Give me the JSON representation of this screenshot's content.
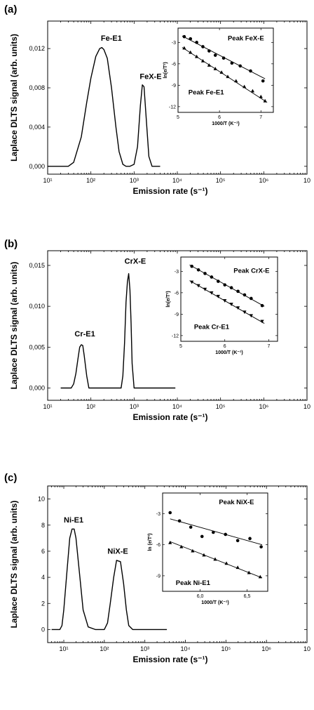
{
  "figure": {
    "panels": [
      "(a)",
      "(b)",
      "(c)"
    ]
  },
  "chart_data": [
    {
      "type": "line",
      "panel_label": "(a)",
      "xlabel": "Emission rate (s⁻¹)",
      "ylabel": "Laplace DLTS signal (arb. units)",
      "xscale": "log",
      "xlim": [
        10,
        10000000
      ],
      "ylim": [
        -0.0008,
        0.0148
      ],
      "x_tick_values": [
        10,
        100,
        1000,
        10000,
        100000,
        1000000,
        10000000
      ],
      "x_tick_labels": [
        "10¹",
        "10²",
        "10³",
        "10⁴",
        "10⁵",
        "10⁶",
        "10"
      ],
      "y_tick_values": [
        0,
        0.004,
        0.008,
        0.012
      ],
      "y_tick_labels": [
        "0,000",
        "0,004",
        "0,008",
        "0,012"
      ],
      "series": [
        {
          "x": [
            10,
            30,
            40,
            60,
            80,
            100,
            130,
            160,
            180,
            200,
            240,
            300,
            380,
            450,
            550,
            650,
            800,
            1000,
            1200,
            1400,
            1550,
            1700,
            1900,
            2200,
            2600,
            3000,
            4000
          ],
          "y": [
            0,
            0,
            0.0004,
            0.003,
            0.0065,
            0.009,
            0.0112,
            0.012,
            0.0121,
            0.0119,
            0.011,
            0.008,
            0.004,
            0.0015,
            0.0002,
            0,
            0,
            0.0002,
            0.002,
            0.0062,
            0.0083,
            0.0081,
            0.005,
            0.001,
            0,
            0,
            0
          ]
        }
      ],
      "peak_labels": [
        {
          "text": "Fe-E1",
          "x": 170,
          "y": 0.0128
        },
        {
          "text": "FeX-E",
          "x": 1350,
          "y": 0.0089
        }
      ],
      "inset": {
        "xlabel": "1000/T (K⁻¹)",
        "ylabel": "ln(e/T²)",
        "xlim": [
          5,
          7.3
        ],
        "ylim": [
          -12.8,
          -1
        ],
        "x_tick_values": [
          5,
          6,
          7
        ],
        "x_tick_labels": [
          "5",
          "6",
          "7"
        ],
        "y_tick_values": [
          -3,
          -6,
          -9,
          -12
        ],
        "y_tick_labels": [
          "-3",
          "-6",
          "-9",
          "-12"
        ],
        "series": [
          {
            "name": "Peak FeX-E",
            "marker": "circle",
            "x": [
              5.15,
              5.3,
              5.45,
              5.6,
              5.75,
              5.9,
              6.1,
              6.3,
              6.5,
              6.75,
              7.05
            ],
            "y": [
              -2.2,
              -2.5,
              -3.0,
              -3.6,
              -4.2,
              -4.8,
              -5.2,
              -5.9,
              -6.3,
              -7.0,
              -8.4
            ],
            "fit": [
              [
                5.1,
                -2.1
              ],
              [
                7.1,
                -8.1
              ]
            ]
          },
          {
            "name": "Peak Fe-E1",
            "marker": "triangle",
            "x": [
              5.15,
              5.3,
              5.45,
              5.6,
              5.75,
              5.9,
              6.05,
              6.2,
              6.4,
              6.6,
              6.8,
              7.0,
              7.1
            ],
            "y": [
              -3.8,
              -4.4,
              -5.0,
              -5.6,
              -6.2,
              -6.7,
              -7.2,
              -7.8,
              -8.4,
              -9.2,
              -9.8,
              -10.6,
              -11.2
            ],
            "fit": [
              [
                5.1,
                -3.7
              ],
              [
                7.15,
                -11.4
              ]
            ]
          }
        ],
        "legend_labels": [
          {
            "text": "Peak FeX-E",
            "x": 6.2,
            "y": -2.7
          },
          {
            "text": "Peak Fe-E1",
            "x": 5.25,
            "y": -10.3
          }
        ]
      }
    },
    {
      "type": "line",
      "panel_label": "(b)",
      "xlabel": "Emission rate (s⁻¹)",
      "ylabel": "Laplace DLTS signal (arb. units)",
      "xscale": "log",
      "xlim": [
        10,
        10000000
      ],
      "ylim": [
        -0.0015,
        0.0168
      ],
      "x_tick_values": [
        10,
        100,
        1000,
        10000,
        100000,
        1000000,
        10000000
      ],
      "x_tick_labels": [
        "10¹",
        "10²",
        "10³",
        "10⁴",
        "10⁵",
        "10⁶",
        "10"
      ],
      "y_tick_values": [
        0,
        0.005,
        0.01,
        0.015
      ],
      "y_tick_labels": [
        "0,000",
        "0,005",
        "0,010",
        "0,015"
      ],
      "series": [
        {
          "x": [
            20,
            35,
            40,
            45,
            50,
            55,
            60,
            65,
            70,
            80,
            90,
            110,
            300,
            500,
            550,
            600,
            650,
            700,
            750,
            800,
            850,
            900,
            1000,
            1200,
            3000,
            9000
          ],
          "y": [
            0,
            0,
            0.0005,
            0.0018,
            0.0035,
            0.005,
            0.0053,
            0.0052,
            0.004,
            0.0015,
            0,
            0,
            0,
            0,
            0.0015,
            0.0055,
            0.0105,
            0.013,
            0.014,
            0.012,
            0.008,
            0.003,
            0,
            0,
            0,
            0
          ]
        }
      ],
      "peak_labels": [
        {
          "text": "Cr-E1",
          "x": 42,
          "y": 0.0063
        },
        {
          "text": "CrX-E",
          "x": 600,
          "y": 0.0152
        }
      ],
      "inset": {
        "xlabel": "1000/T (K⁻¹)",
        "ylabel": "ln(e/T²)",
        "xlim": [
          5,
          7.2
        ],
        "ylim": [
          -12.8,
          -1
        ],
        "x_tick_values": [
          5,
          6,
          7
        ],
        "x_tick_labels": [
          "5",
          "6",
          "7"
        ],
        "y_tick_values": [
          -3,
          -6,
          -9,
          -12
        ],
        "y_tick_labels": [
          "-3",
          "-6",
          "-9",
          "-12"
        ],
        "series": [
          {
            "name": "Peak CrX-E",
            "marker": "circle",
            "x": [
              5.25,
              5.4,
              5.55,
              5.7,
              5.85,
              6.0,
              6.15,
              6.3,
              6.45,
              6.6,
              6.85
            ],
            "y": [
              -2.3,
              -2.8,
              -3.3,
              -3.8,
              -4.4,
              -4.9,
              -5.3,
              -5.8,
              -6.3,
              -6.8,
              -7.8
            ],
            "fit": [
              [
                5.2,
                -2.1
              ],
              [
                6.9,
                -7.9
              ]
            ]
          },
          {
            "name": "Peak Cr-E1",
            "marker": "triangle-down",
            "x": [
              5.25,
              5.4,
              5.55,
              5.7,
              5.85,
              6.0,
              6.15,
              6.3,
              6.45,
              6.6,
              6.85
            ],
            "y": [
              -4.5,
              -5.0,
              -5.5,
              -6.0,
              -6.5,
              -7.1,
              -7.6,
              -8.1,
              -8.7,
              -9.2,
              -10.0
            ],
            "fit": [
              [
                5.2,
                -4.3
              ],
              [
                6.9,
                -10.3
              ]
            ]
          }
        ],
        "legend_labels": [
          {
            "text": "Peak CrX-E",
            "x": 6.2,
            "y": -3.2
          },
          {
            "text": "Peak Cr-E1",
            "x": 5.3,
            "y": -11.1
          }
        ]
      }
    },
    {
      "type": "line",
      "panel_label": "(c)",
      "xlabel": "Emission rate (s⁻¹)",
      "ylabel": "Laplace DLTS signal (arb. units)",
      "xscale": "log",
      "xlim": [
        4,
        10000000
      ],
      "ylim": [
        -1,
        11
      ],
      "x_tick_values": [
        10,
        100,
        1000,
        10000,
        100000,
        1000000,
        10000000
      ],
      "x_tick_labels": [
        "10¹",
        "10²",
        "10³",
        "10⁴",
        "10⁵",
        "10⁶",
        "10"
      ],
      "y_tick_values": [
        0,
        2,
        4,
        6,
        8,
        10
      ],
      "y_tick_labels": [
        "0",
        "2",
        "4",
        "6",
        "8",
        "10"
      ],
      "series": [
        {
          "x": [
            5,
            8,
            9,
            10,
            12,
            14,
            16,
            18,
            20,
            25,
            30,
            40,
            60,
            100,
            120,
            140,
            170,
            200,
            250,
            300,
            350,
            400,
            500,
            1000,
            3500
          ],
          "y": [
            0,
            0,
            0.3,
            1.5,
            4.5,
            7,
            7.7,
            7.7,
            7,
            4,
            1.5,
            0.2,
            0,
            0,
            0.5,
            2,
            4,
            5.3,
            5.2,
            3.5,
            1.5,
            0.3,
            0,
            0,
            0
          ]
        }
      ],
      "peak_labels": [
        {
          "text": "Ni-E1",
          "x": 10,
          "y": 8.2
        },
        {
          "text": "NiX-E",
          "x": 120,
          "y": 5.8
        }
      ],
      "inset": {
        "xlabel": "1000/T (K⁻¹)",
        "ylabel": "ln (e/T²)",
        "xlim": [
          5.6,
          6.72
        ],
        "ylim": [
          -10.5,
          -1
        ],
        "x_tick_values": [
          6.0,
          6.5
        ],
        "x_tick_labels": [
          "6,0",
          "6,5"
        ],
        "y_tick_values": [
          -3,
          -6,
          -9
        ],
        "y_tick_labels": [
          "-3",
          "-6",
          "-9"
        ],
        "series": [
          {
            "name": "Peak NiX-E",
            "marker": "circle",
            "x": [
              5.68,
              5.78,
              5.9,
              6.02,
              6.14,
              6.27,
              6.4,
              6.53,
              6.65
            ],
            "y": [
              -2.9,
              -3.7,
              -4.3,
              -5.2,
              -4.8,
              -5.0,
              -5.6,
              -5.4,
              -6.2
            ],
            "fit": [
              [
                5.68,
                -3.5
              ],
              [
                6.66,
                -6.0
              ]
            ]
          },
          {
            "name": "Peak Ni-E1",
            "marker": "triangle",
            "x": [
              5.68,
              5.8,
              5.92,
              6.04,
              6.16,
              6.28,
              6.4,
              6.52,
              6.64
            ],
            "y": [
              -5.8,
              -6.2,
              -6.6,
              -7.0,
              -7.4,
              -7.8,
              -8.2,
              -8.7,
              -9.1
            ],
            "fit": [
              [
                5.68,
                -5.7
              ],
              [
                6.66,
                -9.2
              ]
            ]
          }
        ],
        "legend_labels": [
          {
            "text": "Peak NiX-E",
            "x": 6.2,
            "y": -2.1
          },
          {
            "text": "Peak Ni-E1",
            "x": 5.74,
            "y": -9.9
          }
        ]
      }
    }
  ]
}
